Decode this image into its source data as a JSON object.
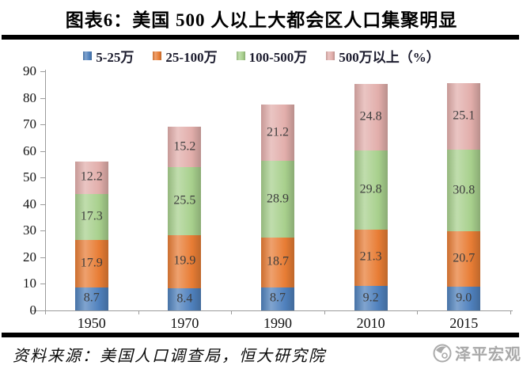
{
  "header": {
    "title": "图表6：美国 500 人以上大都会区人口集聚明显"
  },
  "footer": {
    "source": "资料来源：美国人口调查局，恒大研究院",
    "watermark": "泽平宏观"
  },
  "chart_data": {
    "type": "bar",
    "stacked": true,
    "title": "图表6：美国 500 人以上大都会区人口集聚明显",
    "categories": [
      "1950",
      "1970",
      "1990",
      "2010",
      "2015"
    ],
    "series": [
      {
        "name": "5-25万",
        "color": "#4f81bd",
        "values": [
          8.7,
          8.4,
          8.7,
          9.2,
          9.0
        ]
      },
      {
        "name": "25-100万",
        "color": "#e87d35",
        "values": [
          17.9,
          19.9,
          18.7,
          21.3,
          20.7
        ]
      },
      {
        "name": "100-500万",
        "color": "#a8d08d",
        "values": [
          17.3,
          25.5,
          28.9,
          29.8,
          30.8
        ]
      },
      {
        "name": "500万以上（%）",
        "color": "#e2aeab",
        "values": [
          12.2,
          15.2,
          21.2,
          24.8,
          25.1
        ]
      }
    ],
    "xlabel": "",
    "ylabel": "",
    "ylim": [
      0,
      90
    ],
    "ytick_step": 10,
    "grid": false,
    "legend_position": "top",
    "data_labels": true,
    "label_format": "one-decimal"
  }
}
